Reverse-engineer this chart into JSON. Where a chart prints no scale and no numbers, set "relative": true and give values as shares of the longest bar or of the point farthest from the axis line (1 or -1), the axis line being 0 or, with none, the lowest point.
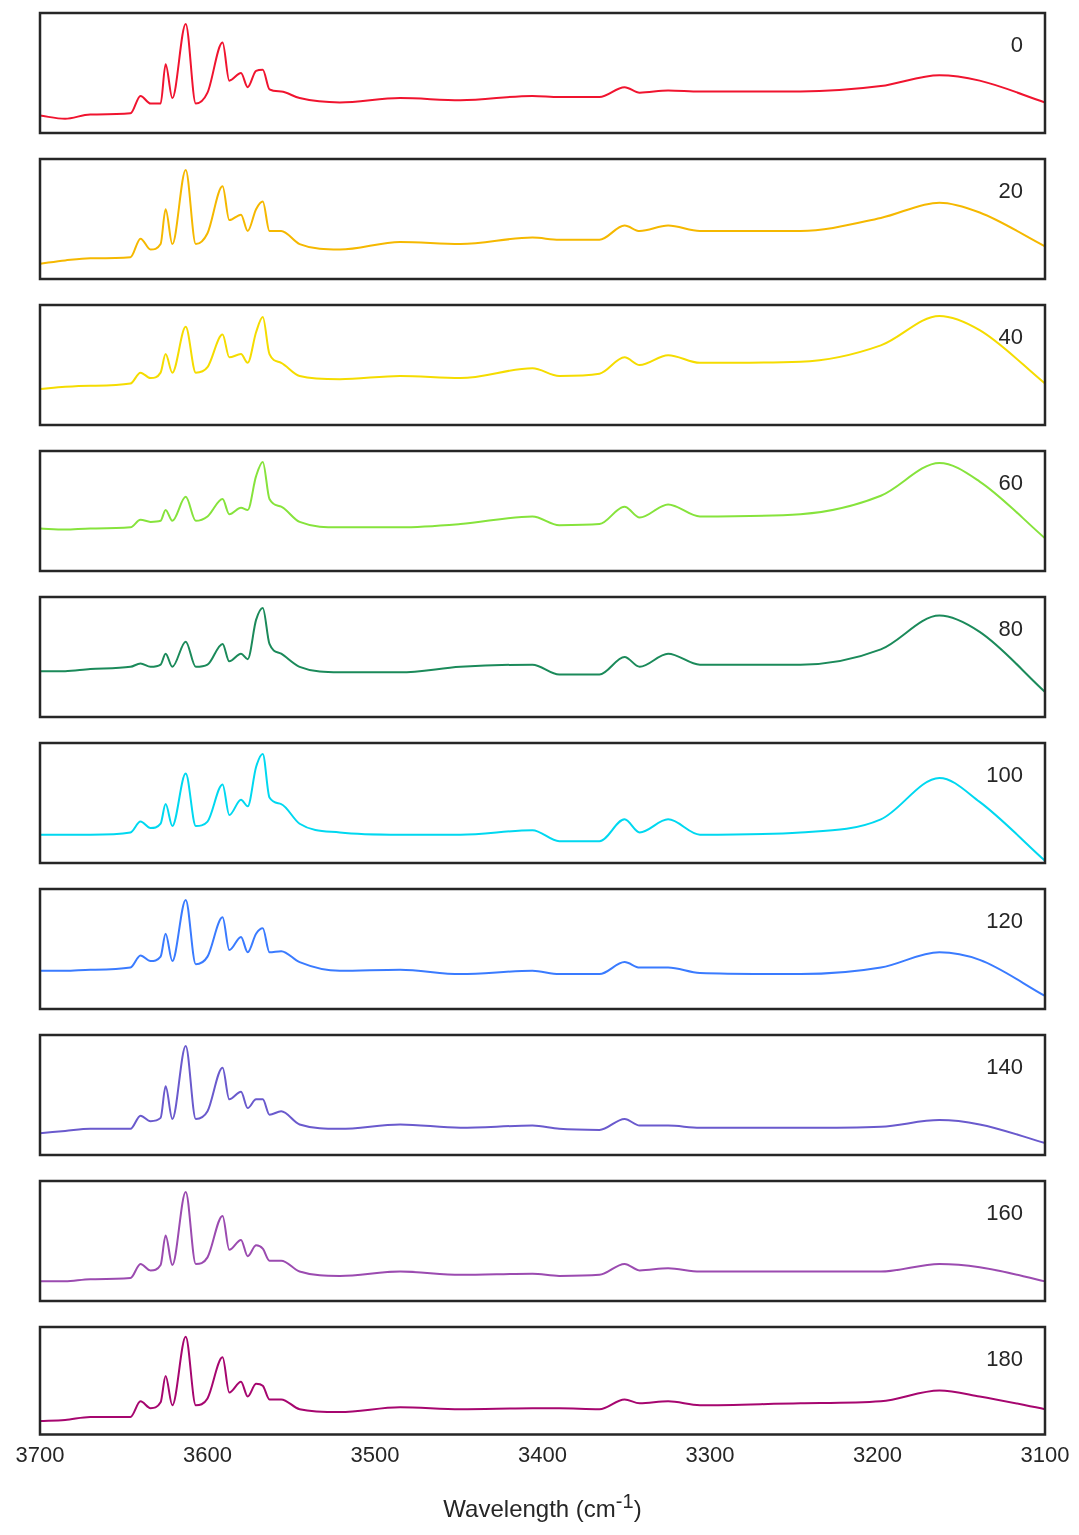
{
  "chart_data": [
    {
      "type": "line",
      "annotations": [
        "0"
      ],
      "relative": true,
      "xlim": [
        3700,
        3100
      ],
      "tick_labels": false,
      "x": [
        3700,
        3685,
        3670,
        3646,
        3640,
        3634,
        3628,
        3625,
        3621,
        3613,
        3607,
        3600,
        3591,
        3587,
        3580,
        3576,
        3571,
        3567,
        3563,
        3556,
        3545,
        3521,
        3485,
        3449,
        3406,
        3390,
        3366,
        3351,
        3342,
        3325,
        3306,
        3246,
        3198,
        3163,
        3139,
        3100
      ],
      "series": [
        {
          "color": "#f0142f",
          "values": [
            0.16,
            0.13,
            0.17,
            0.18,
            0.34,
            0.27,
            0.27,
            0.63,
            0.32,
            1,
            0.27,
            0.37,
            0.83,
            0.48,
            0.55,
            0.42,
            0.57,
            0.58,
            0.4,
            0.38,
            0.32,
            0.28,
            0.32,
            0.3,
            0.34,
            0.33,
            0.33,
            0.42,
            0.37,
            0.39,
            0.38,
            0.38,
            0.43,
            0.53,
            0.48,
            0.28
          ]
        }
      ]
    },
    {
      "type": "line",
      "annotations": [
        "20"
      ],
      "relative": true,
      "xlim": [
        3700,
        3100
      ],
      "tick_labels": false,
      "x": [
        3700,
        3685,
        3670,
        3646,
        3640,
        3634,
        3628,
        3625,
        3621,
        3613,
        3607,
        3600,
        3591,
        3587,
        3580,
        3576,
        3571,
        3567,
        3563,
        3556,
        3545,
        3521,
        3485,
        3449,
        3406,
        3390,
        3366,
        3351,
        3342,
        3325,
        3306,
        3246,
        3198,
        3163,
        3139,
        3100
      ],
      "series": [
        {
          "color": "#f5b800",
          "values": [
            0.14,
            0.17,
            0.19,
            0.2,
            0.37,
            0.27,
            0.32,
            0.64,
            0.32,
            1,
            0.32,
            0.42,
            0.85,
            0.54,
            0.59,
            0.44,
            0.64,
            0.71,
            0.44,
            0.44,
            0.32,
            0.27,
            0.34,
            0.32,
            0.38,
            0.36,
            0.36,
            0.49,
            0.44,
            0.49,
            0.44,
            0.44,
            0.56,
            0.7,
            0.61,
            0.3
          ]
        }
      ]
    },
    {
      "type": "line",
      "annotations": [
        "40"
      ],
      "relative": true,
      "xlim": [
        3700,
        3100
      ],
      "tick_labels": false,
      "x": [
        3700,
        3685,
        3670,
        3646,
        3640,
        3634,
        3628,
        3625,
        3621,
        3613,
        3607,
        3600,
        3591,
        3587,
        3580,
        3576,
        3571,
        3567,
        3563,
        3556,
        3545,
        3521,
        3485,
        3449,
        3406,
        3390,
        3366,
        3351,
        3342,
        3325,
        3306,
        3246,
        3198,
        3163,
        3139,
        3100
      ],
      "series": [
        {
          "color": "#f5dc00",
          "values": [
            0.33,
            0.35,
            0.36,
            0.38,
            0.48,
            0.43,
            0.48,
            0.65,
            0.48,
            0.9,
            0.48,
            0.53,
            0.83,
            0.62,
            0.65,
            0.57,
            0.85,
            0.99,
            0.65,
            0.57,
            0.45,
            0.42,
            0.45,
            0.43,
            0.52,
            0.45,
            0.47,
            0.62,
            0.55,
            0.64,
            0.57,
            0.58,
            0.73,
            1,
            0.87,
            0.38
          ]
        }
      ]
    },
    {
      "type": "line",
      "annotations": [
        "60"
      ],
      "relative": true,
      "xlim": [
        3700,
        3100
      ],
      "tick_labels": false,
      "x": [
        3700,
        3685,
        3670,
        3646,
        3640,
        3634,
        3628,
        3625,
        3621,
        3613,
        3607,
        3600,
        3591,
        3587,
        3580,
        3576,
        3571,
        3567,
        3563,
        3556,
        3545,
        3521,
        3485,
        3449,
        3406,
        3390,
        3366,
        3351,
        3342,
        3325,
        3306,
        3246,
        3198,
        3163,
        3139,
        3100
      ],
      "series": [
        {
          "color": "#86e33c",
          "values": [
            0.39,
            0.38,
            0.39,
            0.4,
            0.47,
            0.45,
            0.46,
            0.56,
            0.46,
            0.68,
            0.46,
            0.5,
            0.66,
            0.52,
            0.58,
            0.56,
            0.87,
            1,
            0.66,
            0.59,
            0.45,
            0.4,
            0.4,
            0.43,
            0.5,
            0.42,
            0.43,
            0.59,
            0.49,
            0.61,
            0.5,
            0.52,
            0.69,
            0.99,
            0.82,
            0.3
          ]
        }
      ]
    },
    {
      "type": "line",
      "annotations": [
        "80"
      ],
      "relative": true,
      "xlim": [
        3700,
        3100
      ],
      "tick_labels": false,
      "x": [
        3700,
        3685,
        3670,
        3646,
        3640,
        3634,
        3628,
        3625,
        3621,
        3613,
        3607,
        3600,
        3591,
        3587,
        3580,
        3576,
        3571,
        3567,
        3563,
        3556,
        3545,
        3521,
        3485,
        3449,
        3406,
        3390,
        3366,
        3351,
        3342,
        3325,
        3306,
        3246,
        3198,
        3163,
        3139,
        3100
      ],
      "series": [
        {
          "color": "#1b8a5a",
          "values": [
            0.42,
            0.42,
            0.44,
            0.46,
            0.49,
            0.46,
            0.48,
            0.58,
            0.46,
            0.69,
            0.46,
            0.48,
            0.67,
            0.51,
            0.58,
            0.53,
            0.89,
            1,
            0.67,
            0.58,
            0.46,
            0.41,
            0.41,
            0.46,
            0.48,
            0.39,
            0.39,
            0.55,
            0.46,
            0.58,
            0.48,
            0.48,
            0.62,
            0.93,
            0.78,
            0.23
          ]
        }
      ]
    },
    {
      "type": "line",
      "annotations": [
        "100"
      ],
      "relative": true,
      "xlim": [
        3700,
        3100
      ],
      "tick_labels": false,
      "x": [
        3700,
        3685,
        3670,
        3646,
        3640,
        3634,
        3628,
        3625,
        3621,
        3613,
        3607,
        3600,
        3591,
        3587,
        3580,
        3576,
        3571,
        3567,
        3563,
        3556,
        3545,
        3521,
        3485,
        3449,
        3406,
        3390,
        3366,
        3351,
        3342,
        3325,
        3306,
        3246,
        3198,
        3163,
        3139,
        3100
      ],
      "series": [
        {
          "color": "#00d8f0",
          "values": [
            0.26,
            0.26,
            0.26,
            0.28,
            0.38,
            0.32,
            0.36,
            0.54,
            0.34,
            0.82,
            0.34,
            0.38,
            0.72,
            0.44,
            0.58,
            0.52,
            0.88,
            1,
            0.6,
            0.54,
            0.36,
            0.28,
            0.26,
            0.26,
            0.3,
            0.2,
            0.2,
            0.4,
            0.28,
            0.4,
            0.26,
            0.28,
            0.4,
            0.78,
            0.56,
            0.02
          ]
        }
      ]
    },
    {
      "type": "line",
      "annotations": [
        "120"
      ],
      "relative": true,
      "xlim": [
        3700,
        3100
      ],
      "tick_labels": false,
      "x": [
        3700,
        3685,
        3670,
        3646,
        3640,
        3634,
        3628,
        3625,
        3621,
        3613,
        3607,
        3600,
        3591,
        3587,
        3580,
        3576,
        3571,
        3567,
        3563,
        3556,
        3545,
        3521,
        3485,
        3449,
        3406,
        3390,
        3366,
        3351,
        3342,
        3325,
        3306,
        3246,
        3198,
        3163,
        3139,
        3100
      ],
      "series": [
        {
          "color": "#3a7bff",
          "values": [
            0.35,
            0.35,
            0.36,
            0.38,
            0.49,
            0.44,
            0.48,
            0.69,
            0.44,
            1,
            0.41,
            0.48,
            0.84,
            0.54,
            0.66,
            0.52,
            0.69,
            0.74,
            0.52,
            0.53,
            0.43,
            0.35,
            0.36,
            0.32,
            0.35,
            0.32,
            0.32,
            0.43,
            0.38,
            0.38,
            0.33,
            0.32,
            0.38,
            0.52,
            0.45,
            0.12
          ]
        }
      ]
    },
    {
      "type": "line",
      "annotations": [
        "140"
      ],
      "relative": true,
      "xlim": [
        3700,
        3100
      ],
      "tick_labels": false,
      "x": [
        3700,
        3685,
        3670,
        3646,
        3640,
        3634,
        3628,
        3625,
        3621,
        3613,
        3607,
        3600,
        3591,
        3587,
        3580,
        3576,
        3571,
        3567,
        3563,
        3556,
        3545,
        3521,
        3485,
        3449,
        3406,
        3390,
        3366,
        3351,
        3342,
        3325,
        3306,
        3246,
        3198,
        3163,
        3139,
        3100
      ],
      "series": [
        {
          "color": "#6a5acd",
          "values": [
            0.2,
            0.22,
            0.24,
            0.24,
            0.36,
            0.31,
            0.34,
            0.63,
            0.33,
            1,
            0.33,
            0.4,
            0.8,
            0.51,
            0.58,
            0.43,
            0.51,
            0.51,
            0.37,
            0.4,
            0.28,
            0.24,
            0.28,
            0.25,
            0.27,
            0.24,
            0.23,
            0.33,
            0.27,
            0.27,
            0.25,
            0.25,
            0.26,
            0.32,
            0.28,
            0.11
          ]
        }
      ]
    },
    {
      "type": "line",
      "annotations": [
        "160"
      ],
      "relative": true,
      "xlim": [
        3700,
        3100
      ],
      "tick_labels": false,
      "x": [
        3700,
        3685,
        3670,
        3646,
        3640,
        3634,
        3628,
        3625,
        3621,
        3613,
        3607,
        3600,
        3591,
        3587,
        3580,
        3576,
        3571,
        3567,
        3563,
        3556,
        3545,
        3521,
        3485,
        3449,
        3406,
        3390,
        3366,
        3351,
        3342,
        3325,
        3306,
        3246,
        3198,
        3163,
        3139,
        3100
      ],
      "series": [
        {
          "color": "#9b4bb0",
          "values": [
            0.18,
            0.18,
            0.2,
            0.21,
            0.34,
            0.28,
            0.33,
            0.6,
            0.33,
            1,
            0.34,
            0.4,
            0.78,
            0.47,
            0.56,
            0.41,
            0.51,
            0.48,
            0.37,
            0.37,
            0.27,
            0.23,
            0.27,
            0.24,
            0.25,
            0.23,
            0.24,
            0.34,
            0.28,
            0.3,
            0.27,
            0.27,
            0.27,
            0.34,
            0.31,
            0.18
          ]
        }
      ]
    },
    {
      "type": "line",
      "annotations": [
        "180"
      ],
      "relative": true,
      "xlim": [
        3700,
        3100
      ],
      "xticks": [
        3700,
        3600,
        3500,
        3400,
        3300,
        3200,
        3100
      ],
      "tick_labels": "x",
      "xlabel": "Wavelength (cm$^{-1}$)",
      "x": [
        3700,
        3685,
        3670,
        3646,
        3640,
        3634,
        3628,
        3625,
        3621,
        3613,
        3607,
        3600,
        3591,
        3587,
        3580,
        3576,
        3571,
        3567,
        3563,
        3556,
        3545,
        3521,
        3485,
        3449,
        3406,
        3390,
        3366,
        3351,
        3342,
        3325,
        3306,
        3246,
        3198,
        3163,
        3139,
        3100
      ],
      "series": [
        {
          "color": "#a6066f",
          "values": [
            0.14,
            0.15,
            0.18,
            0.18,
            0.34,
            0.27,
            0.33,
            0.6,
            0.3,
            1,
            0.3,
            0.37,
            0.79,
            0.43,
            0.54,
            0.39,
            0.52,
            0.5,
            0.36,
            0.36,
            0.26,
            0.23,
            0.28,
            0.26,
            0.27,
            0.27,
            0.26,
            0.36,
            0.32,
            0.34,
            0.3,
            0.32,
            0.34,
            0.45,
            0.39,
            0.26
          ]
        }
      ]
    }
  ]
}
